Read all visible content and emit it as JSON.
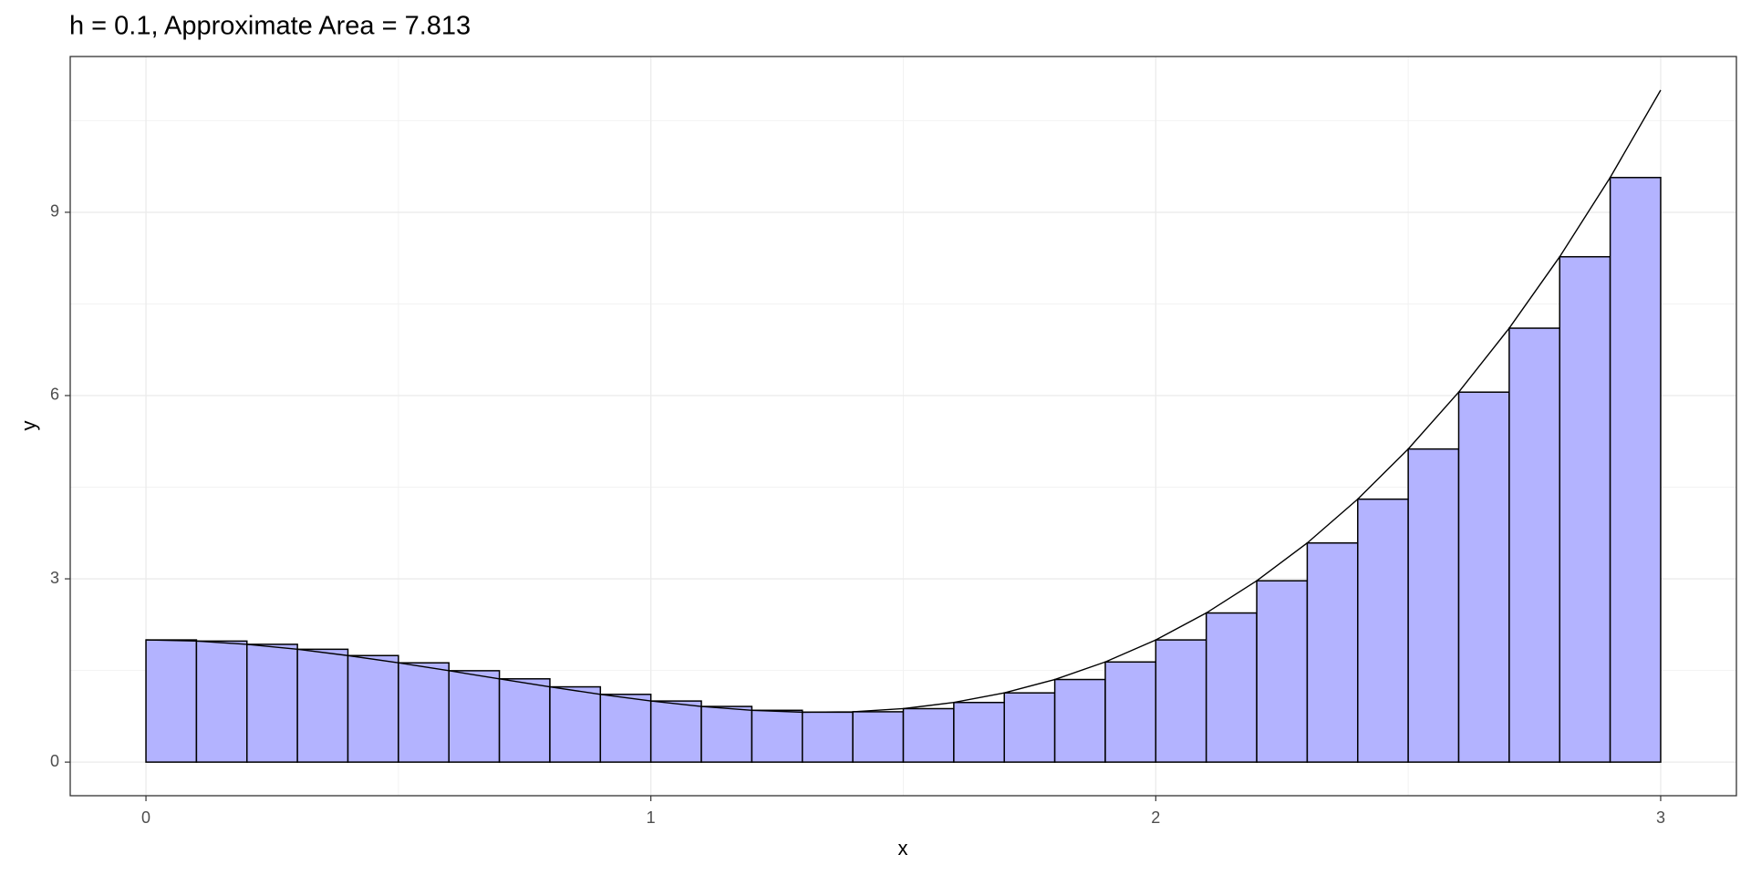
{
  "chart_data": {
    "type": "histogram",
    "title": "h = 0.1, Approximate Area = 7.813",
    "xlabel": "x",
    "ylabel": "y",
    "bins": [
      0,
      0.1,
      0.2,
      0.3,
      0.4,
      0.5,
      0.6,
      0.7,
      0.8,
      0.9,
      1,
      1.1,
      1.2,
      1.3,
      1.4,
      1.5,
      1.6,
      1.7,
      1.8,
      1.9,
      2,
      2.1,
      2.2,
      2.3,
      2.4,
      2.5,
      2.6,
      2.7,
      2.8,
      2.9,
      3
    ],
    "values": [
      2,
      1.981,
      1.928,
      1.847,
      1.744,
      1.625,
      1.496,
      1.363,
      1.232,
      1.109,
      1,
      0.911,
      0.848,
      0.817,
      0.824,
      0.875,
      0.976,
      1.133,
      1.352,
      1.639,
      2,
      2.441,
      2.968,
      3.587,
      4.304,
      5.125,
      6.056,
      7.103,
      8.272,
      9.569
    ],
    "color": "#b3b3ff",
    "line": {
      "color": "#000000",
      "x": [
        0,
        0.1,
        0.2,
        0.3,
        0.4,
        0.5,
        0.6,
        0.7,
        0.8,
        0.9,
        1,
        1.1,
        1.2,
        1.3,
        1.4,
        1.5,
        1.6,
        1.7,
        1.8,
        1.9,
        2,
        2.1,
        2.2,
        2.3,
        2.4,
        2.5,
        2.6,
        2.7,
        2.8,
        2.9,
        3
      ],
      "values": [
        2,
        1.981,
        1.928,
        1.847,
        1.744,
        1.625,
        1.496,
        1.363,
        1.232,
        1.109,
        1,
        0.911,
        0.848,
        0.817,
        0.824,
        0.875,
        0.976,
        1.133,
        1.352,
        1.639,
        2,
        2.441,
        2.968,
        3.587,
        4.304,
        5.125,
        6.056,
        7.103,
        8.272,
        9.569,
        11
      ]
    },
    "xlim": [
      -0.15,
      3.15
    ],
    "ylim": [
      -0.55,
      11.55
    ],
    "xticks": [
      0,
      1,
      2,
      3
    ],
    "yticks": [
      0,
      3,
      6,
      9
    ],
    "minor_xticks": [
      0.5,
      1.5,
      2.5
    ],
    "minor_yticks": [
      1.5,
      4.5,
      7.5,
      10.5
    ],
    "grid": true
  }
}
